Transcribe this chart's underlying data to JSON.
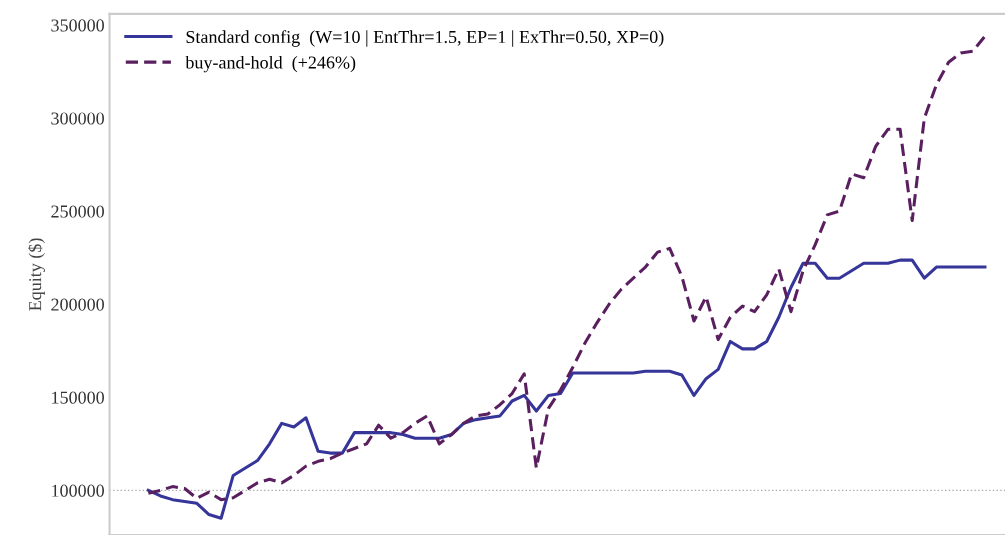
{
  "chart_data": {
    "type": "line",
    "ylabel": "Equity ($)",
    "categories": [
      null,
      null,
      null,
      null,
      null,
      null,
      null,
      null,
      null,
      null,
      null,
      null,
      null,
      null,
      null,
      null,
      null,
      null,
      null,
      null,
      null,
      null,
      null,
      null,
      null,
      null,
      null,
      null,
      null,
      null,
      null,
      null,
      null,
      null,
      null,
      null,
      null,
      null,
      null,
      null,
      null,
      null,
      null,
      null,
      null,
      null,
      null,
      null,
      null,
      null,
      null,
      null,
      null,
      null,
      null,
      null,
      null,
      null,
      null,
      null,
      null,
      null,
      null,
      null,
      null,
      null,
      null,
      null,
      null,
      null
    ],
    "series": [
      {
        "name": "Standard config  (W=10 | EntThr=1.5, EP=1 | ExThr=0.50, XP=0)",
        "color": "#35359a",
        "line_style": "solid",
        "values": [
          100000,
          97000,
          95000,
          94000,
          93000,
          87000,
          85000,
          108000,
          112000,
          116000,
          125000,
          136000,
          134000,
          139000,
          121000,
          120000,
          120000,
          131000,
          131000,
          131000,
          131000,
          130000,
          128000,
          128000,
          128000,
          130000,
          136000,
          138000,
          139000,
          140000,
          148000,
          151000,
          142600,
          151000,
          152000,
          163000,
          163000,
          163000,
          163000,
          163000,
          163000,
          164000,
          164000,
          164000,
          162000,
          151000,
          160000,
          165000,
          180000,
          176000,
          176000,
          180000,
          193000,
          209000,
          222000,
          222000,
          214000,
          214000,
          218000,
          222000,
          222000,
          222000,
          223700,
          223700,
          214000,
          220000,
          220000,
          220000,
          220000,
          220000
        ]
      },
      {
        "name": "buy-and-hold  (+246%)",
        "color": "#5a1f5e",
        "line_style": "dashed",
        "values": [
          98400,
          100000,
          102000,
          101000,
          95700,
          99000,
          95000,
          96000,
          100000,
          104000,
          106000,
          104000,
          108000,
          113000,
          115600,
          117000,
          120000,
          122500,
          125000,
          135000,
          128000,
          131000,
          136000,
          140000,
          125000,
          130000,
          136000,
          140000,
          141000,
          146000,
          152000,
          162600,
          112000,
          144000,
          154000,
          166000,
          179000,
          190000,
          200000,
          208000,
          214000,
          220000,
          228000,
          230000,
          215000,
          191000,
          204000,
          181000,
          193000,
          199000,
          196000,
          205000,
          219000,
          196000,
          218000,
          232000,
          248000,
          250000,
          270000,
          268000,
          285000,
          294000,
          294000,
          245000,
          300000,
          318000,
          330000,
          335000,
          336000,
          344000
        ]
      }
    ],
    "ylim": [
      76000,
      356000
    ],
    "yticks": [
      100000,
      150000,
      200000,
      250000,
      300000,
      350000
    ],
    "ref_lines": [
      {
        "axis": "y",
        "value": 100000,
        "color": "#aaaaaa",
        "line_style": "dotted"
      }
    ],
    "grid": false,
    "legend": "top left",
    "tick_labels": "y"
  }
}
